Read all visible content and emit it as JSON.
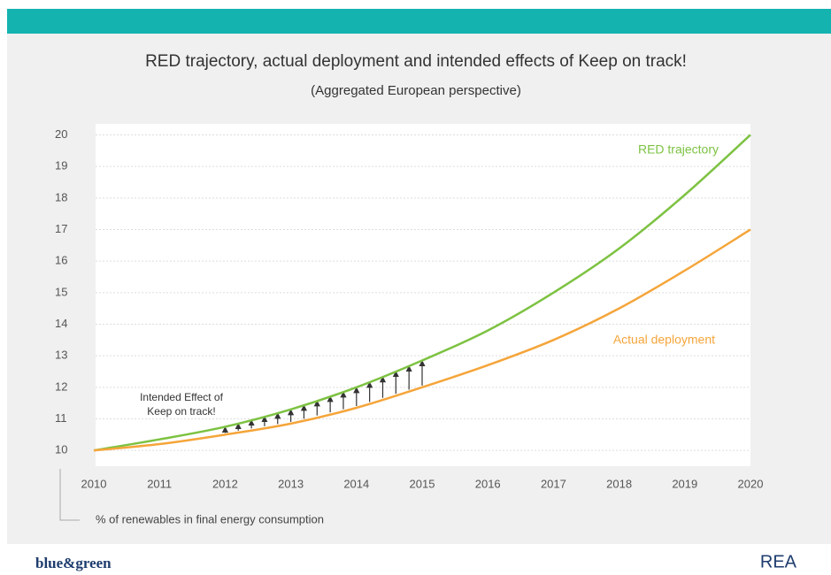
{
  "chart_data": {
    "type": "line",
    "title": "RED trajectory, actual deployment and intended effects of Keep on track!",
    "subtitle": "(Aggregated European perspective)",
    "y_axis_label": "% of renewables in final energy consumption",
    "annotation": [
      "Intended Effect of",
      "Keep on track!"
    ],
    "x": [
      2010,
      2011,
      2012,
      2013,
      2014,
      2015,
      2016,
      2017,
      2018,
      2019,
      2020
    ],
    "series": [
      {
        "name": "RED trajectory",
        "color": "#7dc242",
        "values": [
          10,
          10.35,
          10.75,
          11.3,
          12.0,
          12.85,
          13.8,
          15.0,
          16.4,
          18.1,
          20
        ]
      },
      {
        "name": "Actual deployment",
        "color": "#f5a53a",
        "values": [
          10,
          10.2,
          10.5,
          10.85,
          11.35,
          12.0,
          12.7,
          13.5,
          14.5,
          15.7,
          17
        ]
      }
    ],
    "xlim": [
      2010,
      2020
    ],
    "xticks": [
      2010,
      2011,
      2012,
      2013,
      2014,
      2015,
      2016,
      2017,
      2018,
      2019,
      2020
    ],
    "ylim": [
      9.5,
      20.35
    ],
    "yticks": [
      10,
      11,
      12,
      13,
      14,
      15,
      16,
      17,
      18,
      19,
      20
    ],
    "grid": true,
    "footer_left": "blue&green",
    "footer_right": "REA"
  }
}
